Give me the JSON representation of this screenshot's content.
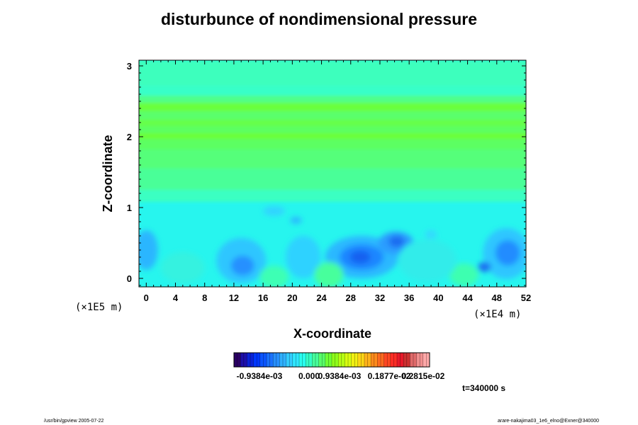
{
  "chart_data": {
    "type": "heatmap",
    "title": "disturbunce of nondimensional pressure",
    "xlabel": "X-coordinate",
    "ylabel": "Z-coordinate",
    "x_scale_note": "(×1E4 m)",
    "y_scale_note": "(×1E5 m)",
    "xlim": [
      -1,
      52
    ],
    "ylim": [
      -0.12,
      3.08
    ],
    "x_ticks": [
      "0",
      "4",
      "8",
      "12",
      "16",
      "20",
      "24",
      "28",
      "32",
      "36",
      "40",
      "44",
      "48",
      "52"
    ],
    "y_ticks": [
      "0",
      "1",
      "2",
      "3"
    ],
    "colorbar": {
      "colors": [
        "#2a0064",
        "#1d0fa8",
        "#0a22d8",
        "#0037ff",
        "#0b55ff",
        "#1a72ff",
        "#278fff",
        "#2fb0ff",
        "#33cdff",
        "#2fe6ff",
        "#2affef",
        "#34ffc6",
        "#46ff9b",
        "#58ff6a",
        "#6eff34",
        "#8fff1a",
        "#b6ff14",
        "#d8ff10",
        "#f2f012",
        "#ffd615",
        "#ffb21a",
        "#ff8b1c",
        "#ff6a20",
        "#ff4722",
        "#ff2e26",
        "#e8192a",
        "#cc3030",
        "#e06a6a",
        "#f08f8f",
        "#ffa8a8"
      ],
      "tick_labels": [
        "-0.9384e-03",
        "0.000",
        "0.9384e-03",
        "0.1877e-02",
        "0.2815e-02"
      ]
    },
    "field": {
      "background": "#27f5ee",
      "bands": [
        {
          "z_range": [
            1.08,
            1.25
          ],
          "color": "#3bffc2"
        },
        {
          "z_range": [
            1.25,
            1.55
          ],
          "color": "#49ff98"
        },
        {
          "z_range": [
            1.55,
            1.82
          ],
          "color": "#55ff7a"
        },
        {
          "z_range": [
            1.82,
            2.0
          ],
          "color": "#5cff62"
        },
        {
          "z_range": [
            1.97,
            2.05
          ],
          "color": "#6cff38"
        },
        {
          "z_range": [
            2.05,
            2.15
          ],
          "color": "#5cff62"
        },
        {
          "z_range": [
            2.15,
            2.24
          ],
          "color": "#66ff48"
        },
        {
          "z_range": [
            2.24,
            2.36
          ],
          "color": "#5aff6c"
        },
        {
          "z_range": [
            2.36,
            2.48
          ],
          "color": "#6aff3e"
        },
        {
          "z_range": [
            2.48,
            2.58
          ],
          "color": "#4fff8a"
        },
        {
          "z_range": [
            2.58,
            2.72
          ],
          "color": "#38ffc8"
        },
        {
          "z_range": [
            2.72,
            3.08
          ],
          "color": "#3cffbd"
        }
      ],
      "blobs": [
        {
          "x": 29.5,
          "z": 0.3,
          "rx": 5.0,
          "rz": 0.3,
          "color": "#2cb8ff"
        },
        {
          "x": 29.5,
          "z": 0.3,
          "rx": 3.0,
          "rz": 0.18,
          "color": "#1f86ff"
        },
        {
          "x": 29.3,
          "z": 0.3,
          "rx": 1.4,
          "rz": 0.09,
          "color": "#1560f0"
        },
        {
          "x": 34.2,
          "z": 0.5,
          "rx": 2.4,
          "rz": 0.16,
          "color": "#2a9cff"
        },
        {
          "x": 34.3,
          "z": 0.52,
          "rx": 1.1,
          "rz": 0.08,
          "color": "#1c6cf0"
        },
        {
          "x": 13.0,
          "z": 0.25,
          "rx": 3.4,
          "rz": 0.32,
          "color": "#2fc6ff"
        },
        {
          "x": 13.2,
          "z": 0.18,
          "rx": 1.6,
          "rz": 0.14,
          "color": "#2590ff"
        },
        {
          "x": 49.3,
          "z": 0.35,
          "rx": 3.2,
          "rz": 0.36,
          "color": "#2fc6ff"
        },
        {
          "x": 49.5,
          "z": 0.36,
          "rx": 1.7,
          "rz": 0.18,
          "color": "#248cff"
        },
        {
          "x": 46.3,
          "z": 0.16,
          "rx": 0.9,
          "rz": 0.07,
          "color": "#1c6ef0"
        },
        {
          "x": 21.5,
          "z": 0.3,
          "rx": 2.4,
          "rz": 0.3,
          "color": "#2fd2ff"
        },
        {
          "x": 0.0,
          "z": 0.4,
          "rx": 1.6,
          "rz": 0.28,
          "color": "#2cb6ff"
        },
        {
          "x": 17.5,
          "z": 0.95,
          "rx": 1.5,
          "rz": 0.07,
          "color": "#33d4ff"
        },
        {
          "x": 20.5,
          "z": 0.82,
          "rx": 0.8,
          "rz": 0.05,
          "color": "#2ab8ff"
        },
        {
          "x": 39.0,
          "z": 0.62,
          "rx": 0.8,
          "rz": 0.06,
          "color": "#34d8ff"
        },
        {
          "x": 17.5,
          "z": 0.02,
          "rx": 2.0,
          "rz": 0.16,
          "color": "#3effb4"
        },
        {
          "x": 25.0,
          "z": 0.05,
          "rx": 2.0,
          "rz": 0.18,
          "color": "#46ff9c"
        },
        {
          "x": 43.5,
          "z": 0.05,
          "rx": 2.0,
          "rz": 0.16,
          "color": "#3effb0"
        },
        {
          "x": 5.0,
          "z": 0.15,
          "rx": 3.0,
          "rz": 0.22,
          "color": "#34f2e0"
        },
        {
          "x": 38.5,
          "z": 0.25,
          "rx": 4.0,
          "rz": 0.3,
          "color": "#30ecea"
        }
      ]
    }
  },
  "time_label": "t=340000 s",
  "footer": {
    "left": "/usr/bin/gpview 2005-07-22",
    "right": "arare-nakajima03_1e6_elno@Exner@340000"
  }
}
